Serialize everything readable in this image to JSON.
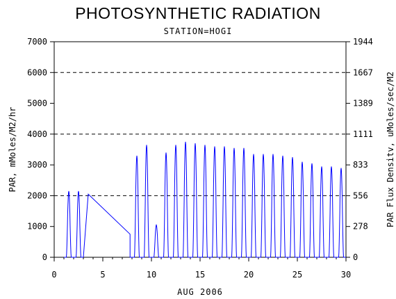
{
  "chart_data": {
    "type": "line",
    "title": "PHOTOSYNTHETIC RADIATION",
    "subtitle": "STATION=HOGI",
    "xlabel": "AUG 2006",
    "ylabel": "PAR, mMoles/M2/hr",
    "y2label": "PAR Flux Densitv, uMoles/sec/M2",
    "xlim": [
      0,
      30
    ],
    "ylim": [
      0,
      7000
    ],
    "x_ticks": [
      "0",
      "5",
      "10",
      "15",
      "20",
      "25",
      "30"
    ],
    "y_ticks": [
      "0",
      "1000",
      "2000",
      "3000",
      "4000",
      "5000",
      "6000",
      "7000"
    ],
    "y2_ticks": [
      "0",
      "278",
      "556",
      "833",
      "1111",
      "1389",
      "1667",
      "1944"
    ],
    "reference_lines": [
      2000,
      4000,
      6000
    ],
    "line_color": "#0000ff",
    "daily_peaks": [
      {
        "day": 1,
        "peak": 2150
      },
      {
        "day": 2,
        "peak": 2150
      },
      {
        "day": 8,
        "peak": 3300
      },
      {
        "day": 9,
        "peak": 3650
      },
      {
        "day": 10,
        "peak": 1050
      },
      {
        "day": 11,
        "peak": 3400
      },
      {
        "day": 12,
        "peak": 3650
      },
      {
        "day": 13,
        "peak": 3750
      },
      {
        "day": 14,
        "peak": 3700
      },
      {
        "day": 15,
        "peak": 3650
      },
      {
        "day": 16,
        "peak": 3600
      },
      {
        "day": 17,
        "peak": 3600
      },
      {
        "day": 18,
        "peak": 3550
      },
      {
        "day": 19,
        "peak": 3550
      },
      {
        "day": 20,
        "peak": 3350
      },
      {
        "day": 21,
        "peak": 3350
      },
      {
        "day": 22,
        "peak": 3350
      },
      {
        "day": 23,
        "peak": 3300
      },
      {
        "day": 24,
        "peak": 3250
      },
      {
        "day": 25,
        "peak": 3100
      },
      {
        "day": 26,
        "peak": 3050
      },
      {
        "day": 27,
        "peak": 2950
      },
      {
        "day": 28,
        "peak": 2950
      },
      {
        "day": 29,
        "peak": 2900
      }
    ],
    "data_gap": {
      "from_day": 3.5,
      "from_value": 2050,
      "to_day": 7.8,
      "to_value": 750
    }
  }
}
